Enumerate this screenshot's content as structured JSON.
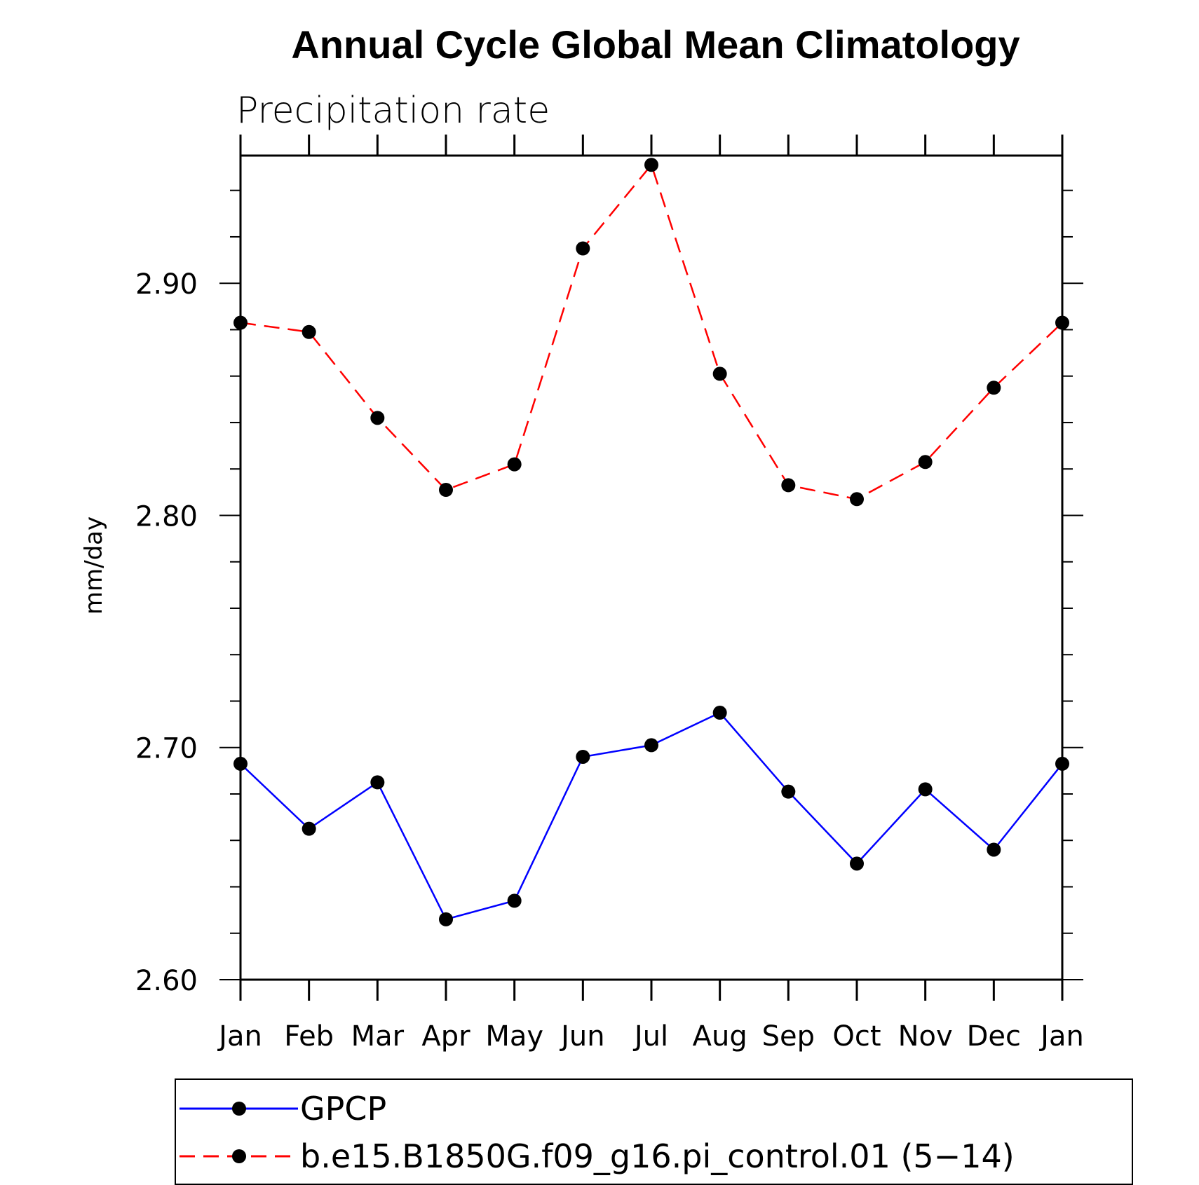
{
  "chart_data": {
    "type": "line",
    "title": "Annual Cycle Global Mean Climatology",
    "subtitle": "Precipitation rate",
    "xlabel": "",
    "ylabel": "mm/day",
    "categories": [
      "Jan",
      "Feb",
      "Mar",
      "Apr",
      "May",
      "Jun",
      "Jul",
      "Aug",
      "Sep",
      "Oct",
      "Nov",
      "Dec",
      "Jan"
    ],
    "ylim": [
      2.6,
      2.955
    ],
    "yticks": [
      "2.60",
      "2.70",
      "2.80",
      "2.90"
    ],
    "grid": false,
    "legend_position": "bottom",
    "series": [
      {
        "name": "GPCP",
        "color": "#0000ff",
        "dash": "solid",
        "marker": "circle",
        "values": [
          2.693,
          2.665,
          2.685,
          2.626,
          2.634,
          2.696,
          2.701,
          2.715,
          2.681,
          2.65,
          2.682,
          2.656,
          2.693
        ]
      },
      {
        "name": "b.e15.B1850G.f09_g16.pi_control.01 (5−14)",
        "color": "#ff0000",
        "dash": "dashed",
        "marker": "circle",
        "values": [
          2.883,
          2.879,
          2.842,
          2.811,
          2.822,
          2.915,
          2.951,
          2.861,
          2.813,
          2.807,
          2.823,
          2.855,
          2.883
        ]
      }
    ]
  }
}
